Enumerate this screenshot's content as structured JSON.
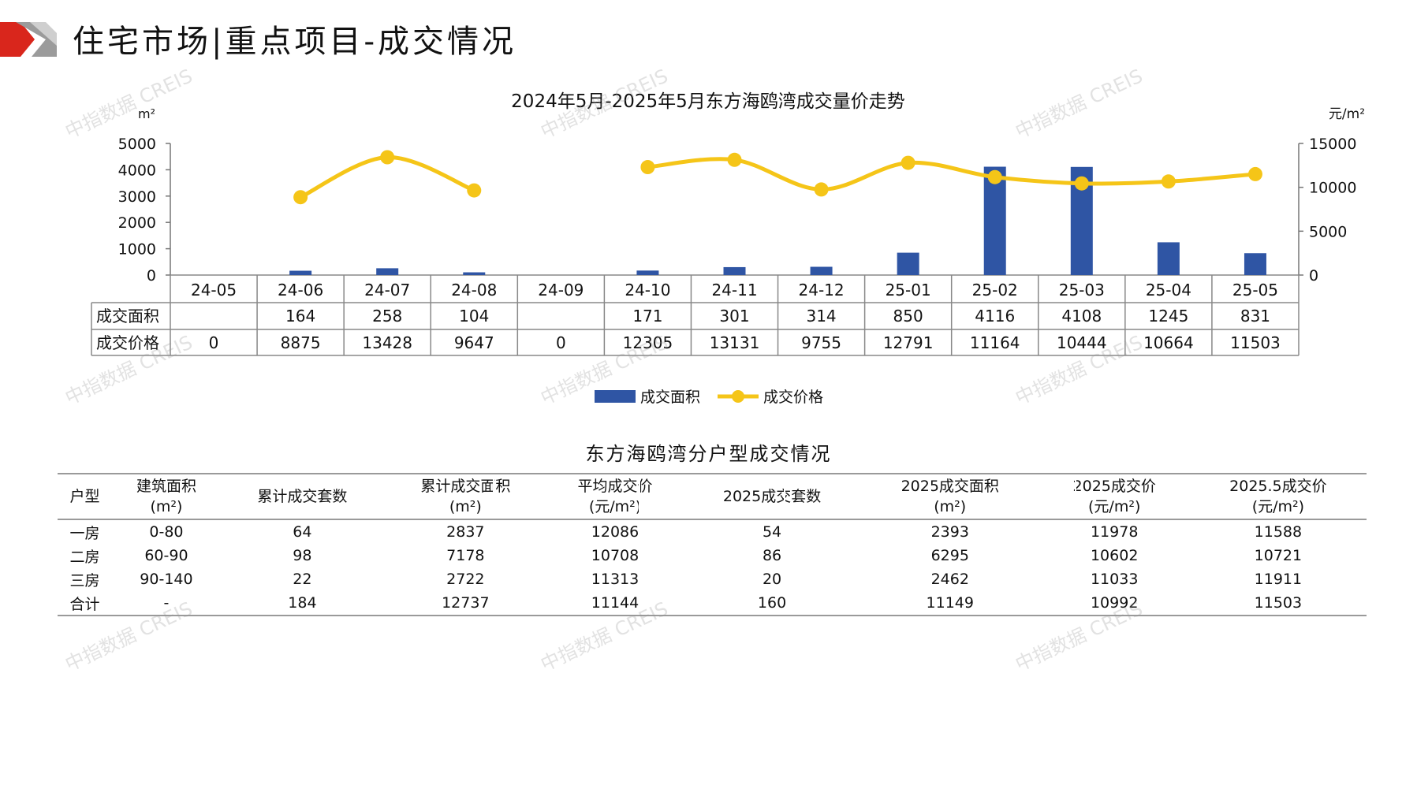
{
  "header": {
    "title": "住宅市场|重点项目-成交情况"
  },
  "watermark": "中指数据 CREIS",
  "chart_data": {
    "type": "bar+line",
    "title": "2024年5月-2025年5月东方海鸥湾成交量价走势",
    "categories": [
      "24-05",
      "24-06",
      "24-07",
      "24-08",
      "24-09",
      "24-10",
      "24-11",
      "24-12",
      "25-01",
      "25-02",
      "25-03",
      "25-04",
      "25-05"
    ],
    "y_left": {
      "label": "m²",
      "ticks": [
        "5000",
        "4000",
        "3000",
        "2000",
        "1000",
        "0"
      ],
      "range": [
        0,
        5000
      ]
    },
    "y_right": {
      "label": "元/m²",
      "ticks": [
        "15000",
        "10000",
        "5000",
        "0"
      ],
      "range": [
        0,
        15000
      ]
    },
    "series": [
      {
        "name": "成交面积",
        "kind": "bar",
        "axis": "left",
        "color": "#2f55a4",
        "values": [
          null,
          164,
          258,
          104,
          null,
          171,
          301,
          314,
          850,
          4116,
          4108,
          1245,
          831
        ],
        "labels": [
          "",
          "164",
          "258",
          "104",
          "",
          "171",
          "301",
          "314",
          "850",
          "4116",
          "4108",
          "1245",
          "831"
        ]
      },
      {
        "name": "成交价格",
        "kind": "line",
        "axis": "right",
        "color": "#f5c518",
        "values": [
          0,
          8875,
          13428,
          9647,
          0,
          12305,
          13131,
          9755,
          12791,
          11164,
          10444,
          10664,
          11503
        ],
        "labels": [
          "0",
          "8875",
          "13428",
          "9647",
          "0",
          "12305",
          "13131",
          "9755",
          "12791",
          "11164",
          "10444",
          "10664",
          "11503"
        ]
      }
    ],
    "legend_position": "bottom"
  },
  "table": {
    "title": "东方海鸥湾分户型成交情况",
    "headers": [
      [
        "户型"
      ],
      [
        "建筑面积",
        "(m²)"
      ],
      [
        "累计成交套数"
      ],
      [
        "累计成交面积",
        "(m²)"
      ],
      [
        "平均成交价",
        "(元/m²)"
      ],
      [
        "2025成交套数"
      ],
      [
        "2025成交面积",
        "(m²)"
      ],
      [
        "2025成交价",
        "(元/m²)"
      ],
      [
        "2025.5成交价",
        "(元/m²)"
      ]
    ],
    "rows": [
      [
        "一房",
        "0-80",
        "64",
        "2837",
        "12086",
        "54",
        "2393",
        "11978",
        "11588"
      ],
      [
        "二房",
        "60-90",
        "98",
        "7178",
        "10708",
        "86",
        "6295",
        "10602",
        "10721"
      ],
      [
        "三房",
        "90-140",
        "22",
        "2722",
        "11313",
        "20",
        "2462",
        "11033",
        "11911"
      ],
      [
        "合计",
        "-",
        "184",
        "12737",
        "11144",
        "160",
        "11149",
        "10992",
        "11503"
      ]
    ]
  }
}
